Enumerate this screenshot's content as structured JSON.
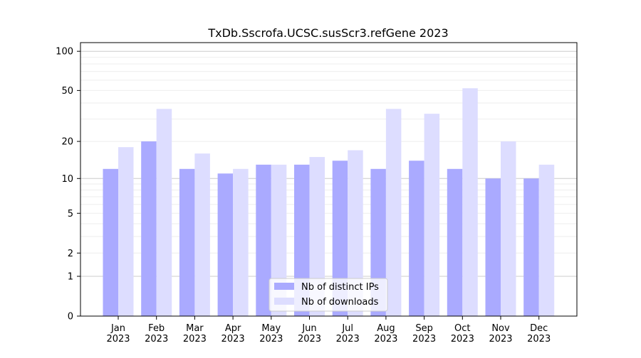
{
  "chart_data": {
    "type": "bar",
    "title": "TxDb.Sscrofa.UCSC.susScr3.refGene 2023",
    "yscale": "symlog (log10(1+y))",
    "ylim": [
      0,
      100
    ],
    "yticks": [
      "0",
      "1",
      "2",
      "5",
      "10",
      "20",
      "50",
      "100"
    ],
    "ytick_values": [
      0,
      1,
      2,
      5,
      10,
      20,
      50,
      100
    ],
    "grid": true,
    "legend_position": "bottom-center",
    "categories": [
      "Jan\n2023",
      "Feb\n2023",
      "Mar\n2023",
      "Apr\n2023",
      "May\n2023",
      "Jun\n2023",
      "Jul\n2023",
      "Aug\n2023",
      "Sep\n2023",
      "Oct\n2023",
      "Nov\n2023",
      "Dec\n2023"
    ],
    "category_labels": [
      [
        "Jan",
        "2023"
      ],
      [
        "Feb",
        "2023"
      ],
      [
        "Mar",
        "2023"
      ],
      [
        "Apr",
        "2023"
      ],
      [
        "May",
        "2023"
      ],
      [
        "Jun",
        "2023"
      ],
      [
        "Jul",
        "2023"
      ],
      [
        "Aug",
        "2023"
      ],
      [
        "Sep",
        "2023"
      ],
      [
        "Oct",
        "2023"
      ],
      [
        "Nov",
        "2023"
      ],
      [
        "Dec",
        "2023"
      ]
    ],
    "series": [
      {
        "name": "Nb of distinct IPs",
        "color": "#aaaaff",
        "values": [
          12,
          20,
          12,
          11,
          13,
          13,
          14,
          12,
          14,
          12,
          10,
          10
        ]
      },
      {
        "name": "Nb of downloads",
        "color": "#ddddff",
        "values": [
          18,
          36,
          16,
          12,
          13,
          15,
          17,
          36,
          33,
          52,
          20,
          13
        ]
      }
    ]
  }
}
